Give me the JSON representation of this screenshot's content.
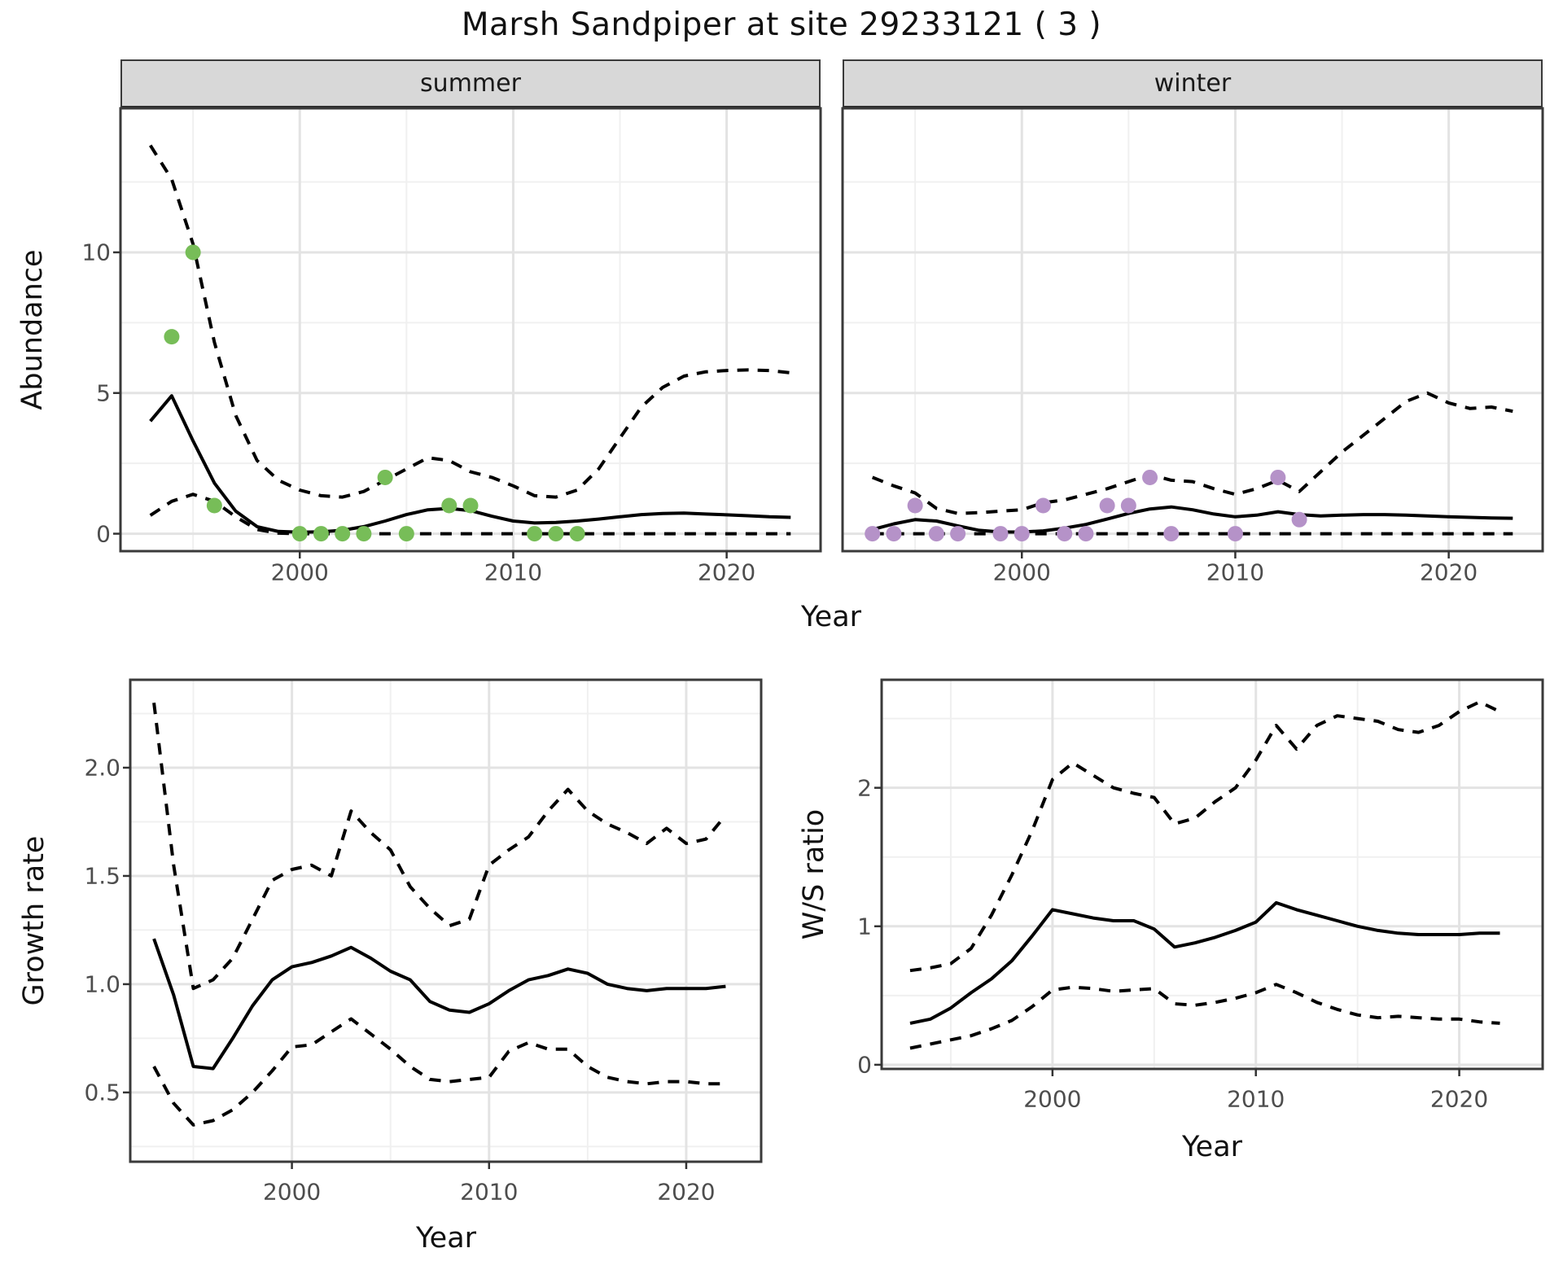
{
  "title": "Marsh Sandpiper at site 29233121 ( 3 )",
  "facets": {
    "summer": "summer",
    "winter": "winter"
  },
  "axes": {
    "x_label": "Year",
    "abundance_label": "Abundance",
    "growth_label": "Growth rate",
    "ws_label": "W/S ratio"
  },
  "colors": {
    "summer_point": "#77bd58",
    "winter_point": "#b592c8",
    "line": "#000000",
    "grid_major": "#e3e3e3",
    "grid_minor": "#f0f0f0",
    "strip_bg": "#d8d8d8",
    "panel_border": "#3a3a3a",
    "tick_mark": "#333333",
    "tick_text": "#4d4d4d"
  },
  "chart_data": [
    {
      "id": "abundance-summer",
      "type": "line",
      "facet": "summer",
      "xlabel": "Year",
      "ylabel": "Abundance",
      "xlim": [
        1991.6,
        2024.4
      ],
      "ylim": [
        -0.62,
        15.12
      ],
      "x_major": [
        {
          "v": 2000,
          "label": "2000"
        },
        {
          "v": 2010,
          "label": "2010"
        },
        {
          "v": 2020,
          "label": "2020"
        }
      ],
      "x_minor": [
        1995,
        2005,
        2015
      ],
      "y_major": [
        {
          "v": 0,
          "label": "0"
        },
        {
          "v": 5,
          "label": "5"
        },
        {
          "v": 10,
          "label": "10"
        }
      ],
      "y_minor": [
        2.5,
        7.5,
        12.5
      ],
      "x": [
        1993,
        1994,
        1995,
        1996,
        1997,
        1998,
        1999,
        2000,
        2001,
        2002,
        2003,
        2004,
        2005,
        2006,
        2007,
        2008,
        2009,
        2010,
        2011,
        2012,
        2013,
        2014,
        2015,
        2016,
        2017,
        2018,
        2019,
        2020,
        2021,
        2022,
        2023
      ],
      "series": [
        {
          "name": "mean",
          "style": "solid",
          "values": [
            4.0,
            4.9,
            3.3,
            1.8,
            0.8,
            0.25,
            0.08,
            0.05,
            0.07,
            0.12,
            0.25,
            0.45,
            0.68,
            0.85,
            0.9,
            0.82,
            0.62,
            0.45,
            0.38,
            0.4,
            0.45,
            0.52,
            0.6,
            0.68,
            0.72,
            0.73,
            0.7,
            0.67,
            0.64,
            0.6,
            0.58
          ]
        },
        {
          "name": "upper_ci",
          "style": "dashed",
          "values": [
            13.8,
            12.6,
            10.3,
            6.8,
            4.2,
            2.6,
            1.9,
            1.55,
            1.35,
            1.3,
            1.5,
            1.9,
            2.3,
            2.7,
            2.6,
            2.2,
            2.0,
            1.7,
            1.35,
            1.3,
            1.55,
            2.3,
            3.4,
            4.5,
            5.2,
            5.6,
            5.75,
            5.8,
            5.82,
            5.8,
            5.72
          ]
        },
        {
          "name": "lower_ci",
          "style": "dashed",
          "values": [
            0.65,
            1.15,
            1.4,
            1.15,
            0.6,
            0.15,
            0.02,
            0,
            0,
            0,
            0,
            0,
            0,
            0,
            0,
            0,
            0,
            0,
            0,
            0,
            0,
            0,
            0,
            0,
            0,
            0,
            0,
            0,
            0,
            0,
            0
          ]
        }
      ],
      "points": {
        "name": "observed_counts",
        "color_key": "summer_point",
        "x": [
          1994,
          1995,
          1996,
          2000,
          2001,
          2002,
          2003,
          2004,
          2005,
          2007,
          2008,
          2011,
          2012,
          2013
        ],
        "y": [
          7,
          10,
          1,
          0,
          0,
          0,
          0,
          2,
          0,
          1,
          1,
          0,
          0,
          0
        ]
      }
    },
    {
      "id": "abundance-winter",
      "type": "line",
      "facet": "winter",
      "xlabel": "Year",
      "ylabel": "Abundance",
      "xlim": [
        1991.6,
        2024.4
      ],
      "ylim": [
        -0.62,
        15.12
      ],
      "x_major": [
        {
          "v": 2000,
          "label": "2000"
        },
        {
          "v": 2010,
          "label": "2010"
        },
        {
          "v": 2020,
          "label": "2020"
        }
      ],
      "x_minor": [
        1995,
        2005,
        2015
      ],
      "y_major": [
        {
          "v": 0,
          "label": "0"
        },
        {
          "v": 5,
          "label": "5"
        },
        {
          "v": 10,
          "label": "10"
        }
      ],
      "y_minor": [
        2.5,
        7.5,
        12.5
      ],
      "x": [
        1993,
        1994,
        1995,
        1996,
        1997,
        1998,
        1999,
        2000,
        2001,
        2002,
        2003,
        2004,
        2005,
        2006,
        2007,
        2008,
        2009,
        2010,
        2011,
        2012,
        2013,
        2014,
        2015,
        2016,
        2017,
        2018,
        2019,
        2020,
        2021,
        2022,
        2023
      ],
      "series": [
        {
          "name": "mean",
          "style": "solid",
          "values": [
            0.15,
            0.35,
            0.5,
            0.45,
            0.28,
            0.12,
            0.06,
            0.06,
            0.1,
            0.2,
            0.33,
            0.52,
            0.72,
            0.88,
            0.95,
            0.85,
            0.7,
            0.6,
            0.66,
            0.78,
            0.68,
            0.63,
            0.66,
            0.68,
            0.68,
            0.66,
            0.63,
            0.6,
            0.58,
            0.56,
            0.55
          ]
        },
        {
          "name": "upper_ci",
          "style": "dashed",
          "values": [
            2.0,
            1.7,
            1.45,
            0.9,
            0.72,
            0.75,
            0.8,
            0.85,
            1.1,
            1.2,
            1.4,
            1.6,
            1.85,
            2.1,
            1.9,
            1.85,
            1.6,
            1.4,
            1.6,
            1.9,
            1.5,
            2.2,
            2.9,
            3.5,
            4.1,
            4.7,
            5.0,
            4.65,
            4.45,
            4.5,
            4.35
          ]
        },
        {
          "name": "lower_ci",
          "style": "dashed",
          "values": [
            0,
            0,
            0,
            0,
            0,
            0,
            0,
            0,
            0,
            0,
            0,
            0,
            0,
            0,
            0,
            0,
            0,
            0,
            0,
            0,
            0,
            0,
            0,
            0,
            0,
            0,
            0,
            0,
            0,
            0,
            0
          ]
        }
      ],
      "points": {
        "name": "observed_counts",
        "color_key": "winter_point",
        "x": [
          1993,
          1994,
          1995,
          1996,
          1997,
          1999,
          2000,
          2001,
          2002,
          2003,
          2004,
          2005,
          2006,
          2007,
          2010,
          2012,
          2013
        ],
        "y": [
          0,
          0,
          1,
          0,
          0,
          0,
          0,
          1,
          0,
          0,
          1,
          1,
          2,
          0,
          0,
          2,
          0.5
        ]
      }
    },
    {
      "id": "growth",
      "type": "line",
      "facet": "",
      "xlabel": "Year",
      "ylabel": "Growth rate",
      "xlim": [
        1991.8,
        2023.8
      ],
      "ylim": [
        0.18,
        2.406
      ],
      "x_major": [
        {
          "v": 2000,
          "label": "2000"
        },
        {
          "v": 2010,
          "label": "2010"
        },
        {
          "v": 2020,
          "label": "2020"
        }
      ],
      "x_minor": [
        1995,
        2005,
        2015
      ],
      "y_major": [
        {
          "v": 0.5,
          "label": "0.5"
        },
        {
          "v": 1.0,
          "label": "1.0"
        },
        {
          "v": 1.5,
          "label": "1.5"
        },
        {
          "v": 2.0,
          "label": "2.0"
        }
      ],
      "y_minor": [
        0.25,
        0.75,
        1.25,
        1.75,
        2.25
      ],
      "x": [
        1993,
        1994,
        1995,
        1996,
        1997,
        1998,
        1999,
        2000,
        2001,
        2002,
        2003,
        2004,
        2005,
        2006,
        2007,
        2008,
        2009,
        2010,
        2011,
        2012,
        2013,
        2014,
        2015,
        2016,
        2017,
        2018,
        2019,
        2020,
        2021,
        2022
      ],
      "series": [
        {
          "name": "mean",
          "style": "solid",
          "values": [
            1.21,
            0.95,
            0.62,
            0.61,
            0.75,
            0.9,
            1.02,
            1.08,
            1.1,
            1.13,
            1.17,
            1.12,
            1.06,
            1.02,
            0.92,
            0.88,
            0.87,
            0.91,
            0.97,
            1.02,
            1.04,
            1.07,
            1.05,
            1.0,
            0.98,
            0.97,
            0.98,
            0.98,
            0.98,
            0.99
          ]
        },
        {
          "name": "upper_ci",
          "style": "dashed",
          "values": [
            2.3,
            1.55,
            0.98,
            1.02,
            1.12,
            1.3,
            1.48,
            1.53,
            1.55,
            1.5,
            1.8,
            1.7,
            1.62,
            1.45,
            1.35,
            1.27,
            1.3,
            1.55,
            1.62,
            1.68,
            1.8,
            1.9,
            1.8,
            1.74,
            1.7,
            1.65,
            1.72,
            1.65,
            1.67,
            1.78
          ]
        },
        {
          "name": "lower_ci",
          "style": "dashed",
          "values": [
            0.62,
            0.45,
            0.35,
            0.37,
            0.42,
            0.5,
            0.6,
            0.71,
            0.72,
            0.78,
            0.84,
            0.77,
            0.7,
            0.62,
            0.56,
            0.55,
            0.56,
            0.57,
            0.69,
            0.73,
            0.7,
            0.7,
            0.62,
            0.57,
            0.55,
            0.54,
            0.55,
            0.55,
            0.54,
            0.54
          ]
        }
      ],
      "points": null
    },
    {
      "id": "ws",
      "type": "line",
      "facet": "",
      "xlabel": "Year",
      "ylabel": "W/S ratio",
      "xlim": [
        1991.6,
        2024.1
      ],
      "ylim": [
        -0.03,
        2.78
      ],
      "x_major": [
        {
          "v": 2000,
          "label": "2000"
        },
        {
          "v": 2010,
          "label": "2010"
        },
        {
          "v": 2020,
          "label": "2020"
        }
      ],
      "x_minor": [
        1995,
        2005,
        2015
      ],
      "y_major": [
        {
          "v": 0,
          "label": "0"
        },
        {
          "v": 1,
          "label": "1"
        },
        {
          "v": 2,
          "label": "2"
        }
      ],
      "y_minor": [
        0.5,
        1.5,
        2.5
      ],
      "x": [
        1993,
        1994,
        1995,
        1996,
        1997,
        1998,
        1999,
        2000,
        2001,
        2002,
        2003,
        2004,
        2005,
        2006,
        2007,
        2008,
        2009,
        2010,
        2011,
        2012,
        2013,
        2014,
        2015,
        2016,
        2017,
        2018,
        2019,
        2020,
        2021,
        2022
      ],
      "series": [
        {
          "name": "mean",
          "style": "solid",
          "values": [
            0.3,
            0.33,
            0.41,
            0.52,
            0.62,
            0.75,
            0.93,
            1.12,
            1.09,
            1.06,
            1.04,
            1.04,
            0.98,
            0.85,
            0.88,
            0.92,
            0.97,
            1.03,
            1.17,
            1.12,
            1.08,
            1.04,
            1.0,
            0.97,
            0.95,
            0.94,
            0.94,
            0.94,
            0.95,
            0.95
          ]
        },
        {
          "name": "upper_ci",
          "style": "dashed",
          "values": [
            0.68,
            0.7,
            0.73,
            0.84,
            1.08,
            1.37,
            1.69,
            2.06,
            2.18,
            2.09,
            2.0,
            1.96,
            1.93,
            1.74,
            1.78,
            1.9,
            2.0,
            2.2,
            2.45,
            2.28,
            2.45,
            2.52,
            2.5,
            2.48,
            2.42,
            2.4,
            2.45,
            2.55,
            2.62,
            2.55
          ]
        },
        {
          "name": "lower_ci",
          "style": "dashed",
          "values": [
            0.12,
            0.15,
            0.18,
            0.21,
            0.26,
            0.32,
            0.42,
            0.54,
            0.56,
            0.55,
            0.53,
            0.54,
            0.55,
            0.44,
            0.43,
            0.45,
            0.48,
            0.52,
            0.58,
            0.52,
            0.45,
            0.4,
            0.36,
            0.34,
            0.35,
            0.34,
            0.33,
            0.33,
            0.31,
            0.3
          ]
        }
      ],
      "points": null
    }
  ]
}
